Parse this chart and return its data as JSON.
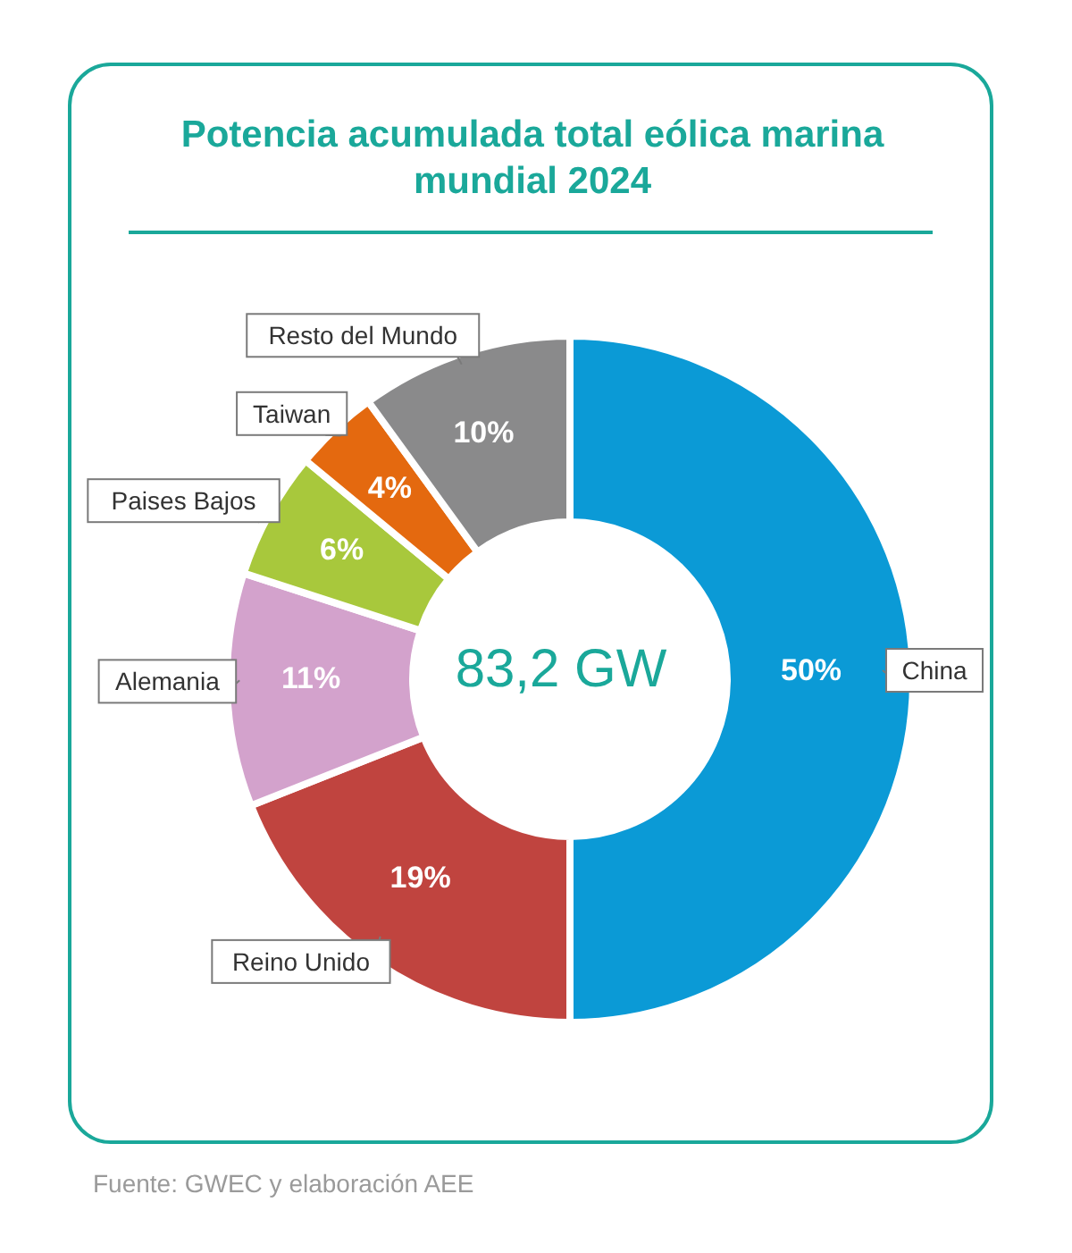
{
  "chart_data": {
    "type": "donut",
    "title": "Potencia acumulada total eólica marina mundial 2024",
    "categories": [
      "China",
      "Reino Unido",
      "Alemania",
      "Paises Bajos",
      "Taiwan",
      "Resto del Mundo"
    ],
    "values": [
      50,
      19,
      11,
      6,
      4,
      10
    ],
    "colors": [
      "#0b9ad6",
      "#c0443f",
      "#d3a2cc",
      "#a8c83c",
      "#e4690f",
      "#8a8a8b"
    ],
    "value_labels": [
      "50%",
      "19%",
      "11%",
      "6%",
      "4%",
      "10%"
    ],
    "annotations": [
      "83,2 GW",
      "Fuente: GWEC y elaboración AEE"
    ]
  }
}
